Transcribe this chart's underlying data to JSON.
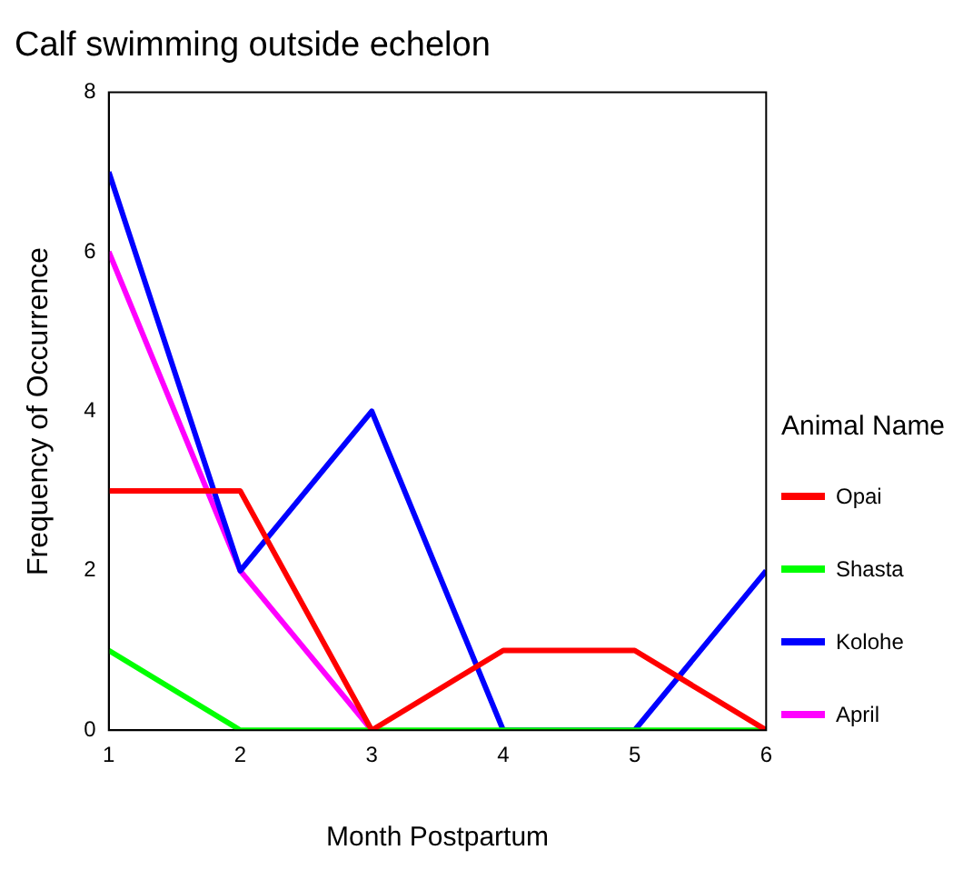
{
  "chart_data": {
    "type": "line",
    "title": "Calf swimming outside echelon",
    "xlabel": "Month Postpartum",
    "ylabel": "Frequency of Occurrence",
    "legend_title": "Animal Name",
    "x": [
      1,
      2,
      3,
      4,
      5,
      6
    ],
    "series": [
      {
        "name": "Opai",
        "color": "#ff0000",
        "values": [
          3,
          3,
          0,
          1,
          1,
          0
        ]
      },
      {
        "name": "Shasta",
        "color": "#00ff00",
        "values": [
          1,
          0,
          0,
          0,
          0,
          0
        ]
      },
      {
        "name": "Kolohe",
        "color": "#0000ff",
        "values": [
          7,
          2,
          4,
          0,
          0,
          2
        ]
      },
      {
        "name": "April",
        "color": "#ff00ff",
        "values": [
          6,
          2,
          0,
          null,
          null,
          null
        ]
      }
    ],
    "xlim": [
      1,
      6
    ],
    "xticks": [
      1,
      2,
      3,
      4,
      5,
      6
    ],
    "ylim": [
      0,
      8
    ],
    "yticks": [
      0,
      2,
      4,
      6,
      8
    ],
    "grid": false,
    "legend": "right",
    "marker": "none",
    "line_style": "solid"
  }
}
